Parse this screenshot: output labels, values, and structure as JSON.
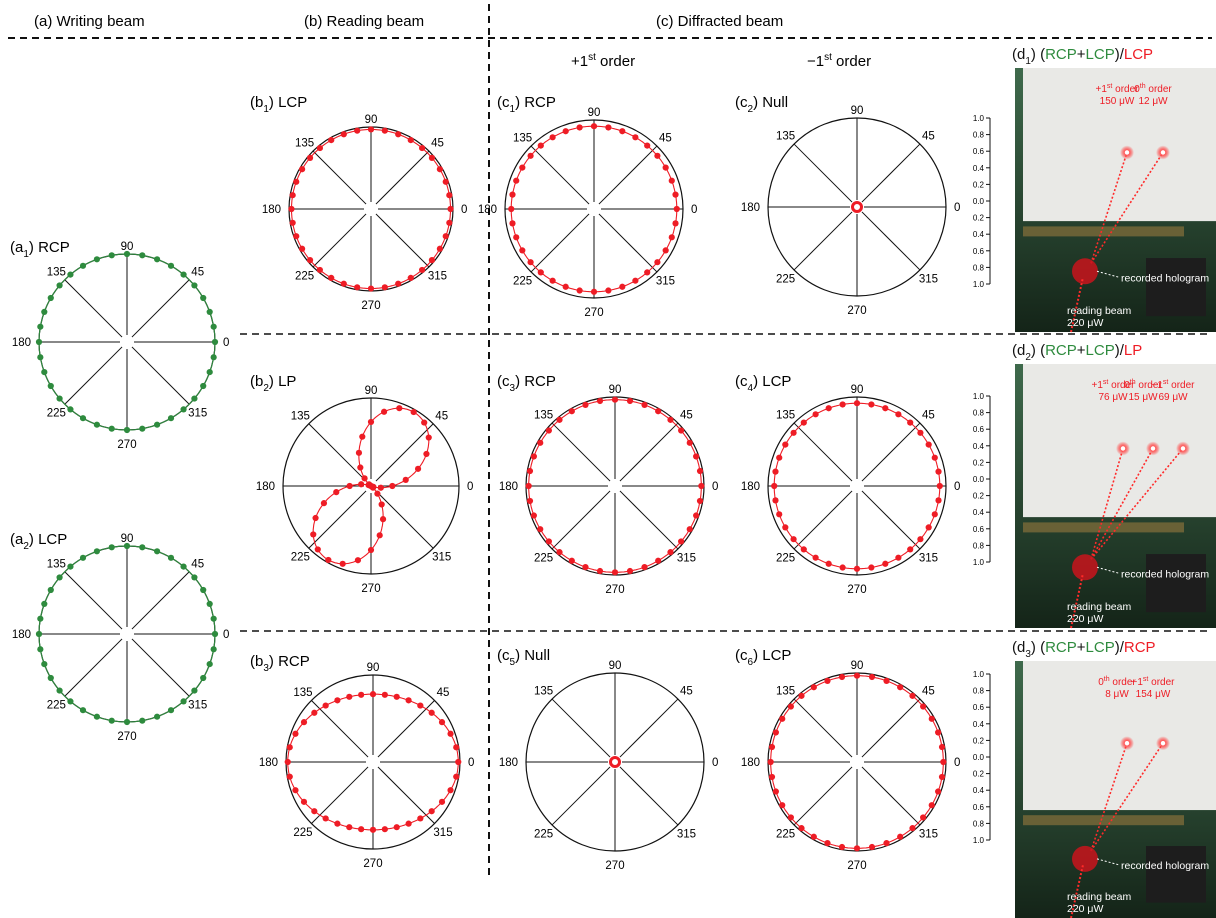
{
  "headers": {
    "a": "(a) Writing beam",
    "b": "(b) Reading beam",
    "c": "(c) Diffracted beam"
  },
  "order_headers": {
    "plus": {
      "sign": "+",
      "num": "1",
      "sup": "st",
      "word": " order"
    },
    "minus": {
      "sign": "−",
      "num": "1",
      "sup": "st",
      "word": " order"
    }
  },
  "angle_labels": [
    "90",
    "45",
    "0",
    "315",
    "270",
    "225",
    "180",
    "135"
  ],
  "colors": {
    "green": "#2e8b3e",
    "red": "#ee1c25",
    "black": "#111111",
    "frame": "#2a2a2a"
  },
  "scale": {
    "ticks": [
      "1.0",
      "0.8",
      "0.6",
      "0.4",
      "0.2",
      "0.0",
      "0.2",
      "0.4",
      "0.6",
      "0.8",
      "1.0"
    ]
  },
  "chart_data": [
    {
      "id": "a1",
      "type": "polar",
      "title": "(a1) RCP",
      "prefix": "(a",
      "sub": "1",
      "suffix": ") RCP",
      "pattern": "circle",
      "color": "green",
      "rmax": 1.0,
      "r": 1.0
    },
    {
      "id": "a2",
      "type": "polar",
      "title": "(a2) LCP",
      "prefix": "(a",
      "sub": "2",
      "suffix": ") LCP",
      "pattern": "circle",
      "color": "green",
      "rmax": 1.0,
      "r": 1.0
    },
    {
      "id": "b1",
      "type": "polar",
      "title": "(b1) LCP",
      "prefix": "(b",
      "sub": "1",
      "suffix": ") LCP",
      "pattern": "circle",
      "color": "red",
      "rmax": 1.0,
      "r": 0.97
    },
    {
      "id": "b2",
      "type": "polar",
      "title": "(b2) LP",
      "prefix": "(b",
      "sub": "2",
      "suffix": ") LP",
      "pattern": "lobe",
      "color": "red",
      "rmax": 1.0,
      "r": 0.97,
      "axis_deg": 60
    },
    {
      "id": "b3",
      "type": "polar",
      "title": "(b3) RCP",
      "prefix": "(b",
      "sub": "3",
      "suffix": ") RCP",
      "pattern": "ellipse",
      "color": "red",
      "rmax": 1.0,
      "a": 0.98,
      "b": 0.78
    },
    {
      "id": "c1",
      "type": "polar",
      "title": "(c1) RCP",
      "prefix": "(c",
      "sub": "1",
      "suffix": ") RCP",
      "pattern": "circle",
      "color": "red",
      "rmax": 1.0,
      "r": 0.93
    },
    {
      "id": "c2",
      "type": "polar",
      "title": "(c2) Null",
      "prefix": "(c",
      "sub": "2",
      "suffix": ") Null",
      "pattern": "null",
      "color": "red",
      "rmax": 1.0
    },
    {
      "id": "c3",
      "type": "polar",
      "title": "(c3) RCP",
      "prefix": "(c",
      "sub": "3",
      "suffix": ") RCP",
      "pattern": "circle",
      "color": "red",
      "rmax": 1.0,
      "r": 0.97
    },
    {
      "id": "c4",
      "type": "polar",
      "title": "(c4) LCP",
      "prefix": "(c",
      "sub": "4",
      "suffix": ") LCP",
      "pattern": "circle",
      "color": "red",
      "rmax": 1.0,
      "r": 0.93
    },
    {
      "id": "c5",
      "type": "polar",
      "title": "(c5) Null",
      "prefix": "(c",
      "sub": "5",
      "suffix": ") Null",
      "pattern": "null",
      "color": "red",
      "rmax": 1.0
    },
    {
      "id": "c6",
      "type": "polar",
      "title": "(c6) LCP",
      "prefix": "(c",
      "sub": "6",
      "suffix": ") LCP",
      "pattern": "circle",
      "color": "red",
      "rmax": 1.0,
      "r": 0.97
    }
  ],
  "photos": [
    {
      "id": "d1",
      "title_parts": [
        {
          "t": "(d",
          "c": "black"
        },
        {
          "t": "1",
          "c": "black",
          "sub": true
        },
        {
          "t": ") (",
          "c": "black"
        },
        {
          "t": "RCP",
          "c": "green"
        },
        {
          "t": "+",
          "c": "black"
        },
        {
          "t": "LCP",
          "c": "green"
        },
        {
          "t": ")/",
          "c": "black"
        },
        {
          "t": "LCP",
          "c": "red"
        }
      ],
      "spots": [
        {
          "lines": [
            "+1st order",
            "150 μW"
          ],
          "sup": "st"
        },
        {
          "lines": [
            "0th order",
            "12 μW"
          ],
          "sup": "th"
        }
      ],
      "hologram": "recorded hologram",
      "reading": [
        "reading beam",
        "220 μW"
      ]
    },
    {
      "id": "d2",
      "title_parts": [
        {
          "t": "(d",
          "c": "black"
        },
        {
          "t": "2",
          "c": "black",
          "sub": true
        },
        {
          "t": ") (",
          "c": "black"
        },
        {
          "t": "RCP",
          "c": "green"
        },
        {
          "t": "+",
          "c": "black"
        },
        {
          "t": "LCP",
          "c": "green"
        },
        {
          "t": ")/",
          "c": "black"
        },
        {
          "t": "LP",
          "c": "red"
        }
      ],
      "spots": [
        {
          "lines": [
            "+1st order",
            "76 μW"
          ],
          "sup": "st"
        },
        {
          "lines": [
            "0th order",
            "15 μW"
          ],
          "sup": "th"
        },
        {
          "lines": [
            "−1st order",
            "69 μW"
          ],
          "sup": "st"
        }
      ],
      "hologram": "recorded hologram",
      "reading": [
        "reading beam",
        "220 μW"
      ]
    },
    {
      "id": "d3",
      "title_parts": [
        {
          "t": "(d",
          "c": "black"
        },
        {
          "t": "3",
          "c": "black",
          "sub": true
        },
        {
          "t": ") (",
          "c": "black"
        },
        {
          "t": "RCP",
          "c": "green"
        },
        {
          "t": "+",
          "c": "black"
        },
        {
          "t": "LCP",
          "c": "green"
        },
        {
          "t": ")/",
          "c": "black"
        },
        {
          "t": "RCP",
          "c": "red"
        }
      ],
      "spots": [
        {
          "lines": [
            "0th order",
            "8 μW"
          ],
          "sup": "th"
        },
        {
          "lines": [
            "−1st order",
            "154 μW"
          ],
          "sup": "st"
        }
      ],
      "hologram": "recorded hologram",
      "reading": [
        "reading beam",
        "220 μW"
      ]
    }
  ]
}
